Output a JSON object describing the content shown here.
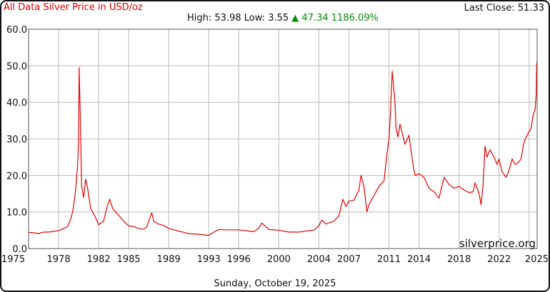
{
  "header": {
    "title": "All Data Silver Price in USD/oz",
    "last_close_label": "Last Close:",
    "last_close_value": "51.33",
    "high_label": "High:",
    "high_value": "53.98",
    "low_label": "Low:",
    "low_value": "3.55",
    "change_arrow": "▲",
    "change_value": "47.34",
    "change_percent": "1186.09%"
  },
  "footer": {
    "date": "Sunday, October 19, 2025"
  },
  "watermark": "silverprice.org",
  "colors": {
    "line": "#e60000",
    "title": "#e60000",
    "change": "#0a8a0a",
    "grid": "#bbbbbb"
  },
  "chart_data": {
    "type": "line",
    "title": "All Data Silver Price in USD/oz",
    "xlabel": "",
    "ylabel": "",
    "xlim": [
      1975,
      2025.8
    ],
    "ylim": [
      0,
      60
    ],
    "grid": true,
    "y_ticks": [
      "0.0",
      "10.0",
      "20.0",
      "30.0",
      "40.0",
      "50.0",
      "60.0"
    ],
    "x_ticks": [
      "1975",
      "1978",
      "1982",
      "1985",
      "1989",
      "1993",
      "1996",
      "2000",
      "2004",
      "2007",
      "2011",
      "2014",
      "2018",
      "2022",
      "2025"
    ],
    "x_tick_years": [
      1975,
      1978,
      1982,
      1985,
      1989,
      1993,
      1996,
      2000,
      2004,
      2007,
      2011,
      2014,
      2018,
      2022,
      2025
    ],
    "series": [
      {
        "x": [
          1975.0,
          1975.5,
          1976.0,
          1976.5,
          1977.0,
          1977.5,
          1978.0,
          1978.5,
          1978.9,
          1979.2,
          1979.4,
          1979.7,
          1979.9,
          1980.0,
          1980.05,
          1980.15,
          1980.3,
          1980.5,
          1980.7,
          1980.9,
          1981.2,
          1981.6,
          1982.0,
          1982.5,
          1982.8,
          1983.1,
          1983.4,
          1983.7,
          1984.2,
          1984.6,
          1985.0,
          1985.5,
          1986.0,
          1986.5,
          1986.8,
          1987.3,
          1987.5,
          1987.9,
          1988.5,
          1989.0,
          1990.0,
          1991.0,
          1992.0,
          1993.0,
          1993.5,
          1994.0,
          1995.0,
          1996.0,
          1997.0,
          1997.5,
          1998.0,
          1998.3,
          1999.0,
          2000.0,
          2001.0,
          2002.0,
          2003.0,
          2003.5,
          2004.0,
          2004.3,
          2004.7,
          2005.0,
          2005.5,
          2006.0,
          2006.4,
          2006.7,
          2007.0,
          2007.5,
          2008.0,
          2008.2,
          2008.5,
          2008.8,
          2009.0,
          2009.5,
          2010.0,
          2010.5,
          2010.8,
          2011.0,
          2011.15,
          2011.32,
          2011.6,
          2011.7,
          2011.9,
          2012.1,
          2012.6,
          2013.0,
          2013.4,
          2013.6,
          2014.0,
          2014.5,
          2015.0,
          2015.5,
          2016.0,
          2016.5,
          2017.0,
          2017.5,
          2018.0,
          2018.5,
          2019.0,
          2019.4,
          2019.6,
          2020.0,
          2020.2,
          2020.4,
          2020.6,
          2020.8,
          2021.0,
          2021.1,
          2021.5,
          2021.8,
          2022.0,
          2022.3,
          2022.7,
          2023.0,
          2023.3,
          2023.6,
          2023.9,
          2024.2,
          2024.4,
          2024.6,
          2024.8,
          2025.0,
          2025.2,
          2025.4,
          2025.6,
          2025.7,
          2025.75,
          2025.8
        ],
        "y": [
          4.4,
          4.3,
          4.1,
          4.5,
          4.5,
          4.7,
          4.9,
          5.5,
          6.0,
          8.0,
          10.0,
          16.0,
          23.0,
          30.0,
          49.5,
          38.0,
          17.0,
          14.0,
          19.0,
          16.5,
          11.0,
          9.0,
          6.5,
          7.5,
          11.0,
          13.5,
          11.0,
          10.0,
          8.5,
          7.2,
          6.2,
          6.0,
          5.5,
          5.3,
          5.9,
          9.8,
          7.5,
          6.8,
          6.3,
          5.5,
          4.8,
          4.1,
          3.9,
          3.6,
          4.5,
          5.2,
          5.1,
          5.1,
          4.8,
          4.6,
          5.6,
          7.0,
          5.2,
          5.0,
          4.5,
          4.5,
          4.9,
          5.0,
          6.3,
          7.8,
          6.7,
          7.0,
          7.5,
          9.0,
          13.5,
          11.5,
          13.0,
          13.2,
          16.0,
          20.0,
          17.0,
          10.0,
          12.0,
          14.5,
          17.0,
          18.5,
          26.0,
          30.0,
          37.5,
          48.5,
          40.0,
          33.0,
          30.5,
          34.0,
          28.5,
          31.0,
          23.0,
          20.0,
          20.5,
          19.5,
          16.5,
          15.5,
          13.8,
          19.5,
          17.5,
          16.5,
          17.0,
          16.0,
          15.3,
          15.5,
          18.0,
          15.0,
          12.0,
          17.5,
          28.0,
          25.0,
          26.5,
          27.0,
          25.0,
          23.0,
          24.5,
          21.0,
          19.5,
          21.5,
          24.5,
          23.0,
          23.5,
          24.5,
          28.0,
          30.0,
          31.0,
          32.0,
          33.0,
          36.5,
          38.0,
          42.0,
          50.0,
          51.33
        ]
      }
    ]
  }
}
